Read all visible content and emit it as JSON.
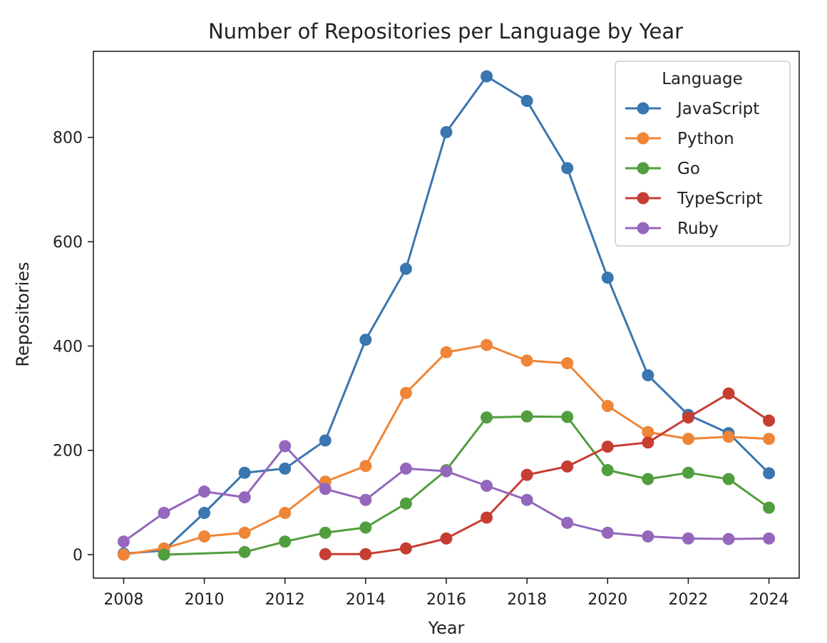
{
  "chart_data": {
    "type": "line",
    "title": "Number of Repositories per Language by Year",
    "xlabel": "Year",
    "ylabel": "Repositories",
    "xlim": [
      2007.25,
      2024.75
    ],
    "ylim": [
      -45,
      965
    ],
    "xticks": [
      2008,
      2010,
      2012,
      2014,
      2016,
      2018,
      2020,
      2022,
      2024
    ],
    "yticks": [
      0,
      200,
      400,
      600,
      800
    ],
    "grid": false,
    "legend": {
      "title": "Language",
      "placement": "top-right"
    },
    "series": [
      {
        "name": "JavaScript",
        "color": "#3a76af",
        "x": [
          2008,
          2009,
          2010,
          2011,
          2012,
          2013,
          2014,
          2015,
          2016,
          2017,
          2018,
          2019,
          2020,
          2021,
          2022,
          2023,
          2024
        ],
        "values": [
          2,
          8,
          80,
          157,
          165,
          219,
          412,
          548,
          810,
          917,
          870,
          741,
          531,
          344,
          268,
          233,
          156
        ]
      },
      {
        "name": "Python",
        "color": "#ef8536",
        "x": [
          2008,
          2009,
          2010,
          2011,
          2012,
          2013,
          2014,
          2015,
          2016,
          2017,
          2018,
          2019,
          2020,
          2021,
          2022,
          2023,
          2024
        ],
        "values": [
          0,
          12,
          35,
          42,
          80,
          140,
          170,
          310,
          388,
          402,
          372,
          367,
          285,
          235,
          222,
          226,
          222
        ]
      },
      {
        "name": "Go",
        "color": "#519e3e",
        "x": [
          2009,
          2011,
          2012,
          2013,
          2014,
          2015,
          2016,
          2017,
          2018,
          2019,
          2020,
          2021,
          2022,
          2023,
          2024
        ],
        "values": [
          0,
          5,
          25,
          42,
          52,
          98,
          162,
          263,
          265,
          264,
          162,
          145,
          157,
          145,
          90
        ]
      },
      {
        "name": "TypeScript",
        "color": "#c63d32",
        "x": [
          2013,
          2014,
          2015,
          2016,
          2017,
          2018,
          2019,
          2020,
          2021,
          2022,
          2023,
          2024
        ],
        "values": [
          1,
          1,
          12,
          31,
          71,
          153,
          169,
          207,
          215,
          263,
          309,
          257
        ]
      },
      {
        "name": "Ruby",
        "color": "#9467bd",
        "x": [
          2008,
          2009,
          2010,
          2011,
          2012,
          2013,
          2014,
          2015,
          2016,
          2017,
          2018,
          2019,
          2020,
          2021,
          2022,
          2023,
          2024
        ],
        "values": [
          25,
          80,
          121,
          110,
          208,
          126,
          105,
          165,
          160,
          132,
          105,
          61,
          42,
          35,
          31,
          30,
          31
        ]
      }
    ]
  }
}
